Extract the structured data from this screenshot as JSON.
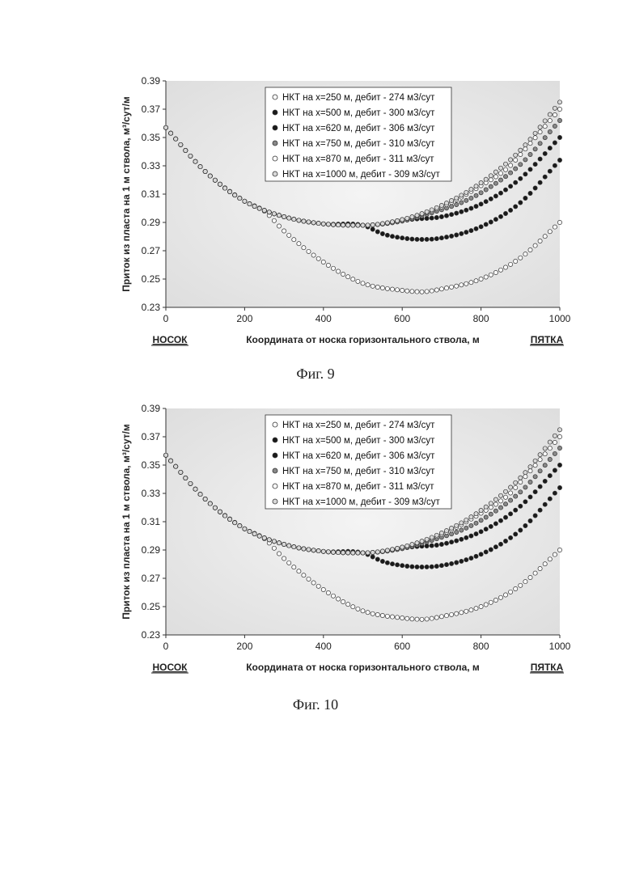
{
  "chart_data": [
    {
      "type": "scatter",
      "caption": "Фиг. 9",
      "xlabel": "Координата от носка горизонтального ствола, м",
      "ylabel": "Приток из пласта на 1 м ствола, м³/сут/м",
      "left_end_label": "НОСОК",
      "right_end_label": "ПЯТКА",
      "xlim": [
        0,
        1000
      ],
      "ylim": [
        0.23,
        0.39
      ],
      "x_ticks": [
        0,
        200,
        400,
        600,
        800,
        1000
      ],
      "y_ticks": [
        0.23,
        0.25,
        0.27,
        0.29,
        0.31,
        0.33,
        0.35,
        0.37,
        0.39
      ],
      "grid": false,
      "legend_position": "top-center",
      "series": [
        {
          "name": "НКТ на x=250 м, дебит - 274 м3/сут",
          "marker_fill": "#ffffff",
          "x": [
            0,
            100,
            200,
            250,
            300,
            400,
            500,
            600,
            650,
            700,
            800,
            900,
            1000
          ],
          "y": [
            0.357,
            0.326,
            0.305,
            0.298,
            0.284,
            0.262,
            0.247,
            0.242,
            0.241,
            0.243,
            0.25,
            0.265,
            0.29
          ]
        },
        {
          "name": "НКТ на x=500 м, дебит - 300 м3/сут",
          "marker_fill": "#1a1a1a",
          "x": [
            0,
            100,
            200,
            300,
            400,
            500,
            550,
            600,
            650,
            700,
            800,
            900,
            1000
          ],
          "y": [
            0.357,
            0.326,
            0.305,
            0.294,
            0.289,
            0.288,
            0.282,
            0.279,
            0.278,
            0.279,
            0.287,
            0.304,
            0.334
          ]
        },
        {
          "name": "НКТ на x=620 м, дебит - 306 м3/сут",
          "marker_fill": "#1a1a1a",
          "x": [
            0,
            100,
            200,
            300,
            400,
            500,
            600,
            620,
            700,
            800,
            900,
            1000
          ],
          "y": [
            0.357,
            0.326,
            0.305,
            0.294,
            0.289,
            0.288,
            0.291,
            0.292,
            0.294,
            0.303,
            0.321,
            0.35
          ]
        },
        {
          "name": "НКТ на x=750 м, дебит - 310 м3/сут",
          "marker_fill": "#888888",
          "x": [
            0,
            100,
            200,
            300,
            400,
            500,
            600,
            700,
            750,
            800,
            900,
            1000
          ],
          "y": [
            0.357,
            0.326,
            0.305,
            0.294,
            0.289,
            0.288,
            0.291,
            0.299,
            0.304,
            0.311,
            0.331,
            0.362
          ]
        },
        {
          "name": "НКТ на x=870 м, дебит - 311 м3/сут",
          "marker_fill": "#ffffff",
          "x": [
            0,
            100,
            200,
            300,
            400,
            500,
            600,
            700,
            800,
            870,
            900,
            1000
          ],
          "y": [
            0.357,
            0.326,
            0.305,
            0.294,
            0.289,
            0.288,
            0.292,
            0.301,
            0.316,
            0.329,
            0.338,
            0.37
          ]
        },
        {
          "name": "НКТ на x=1000 м, дебит - 309 м3/сут",
          "marker_fill": "#d8d8d8",
          "x": [
            0,
            100,
            200,
            300,
            400,
            500,
            600,
            700,
            800,
            900,
            1000
          ],
          "y": [
            0.357,
            0.326,
            0.305,
            0.294,
            0.289,
            0.288,
            0.292,
            0.302,
            0.318,
            0.341,
            0.375
          ]
        }
      ]
    },
    {
      "type": "scatter",
      "caption": "Фиг. 10",
      "xlabel": "Координата от носка горизонтального ствола, м",
      "ylabel": "Приток из пласта на 1 м ствола, м³/сут/м",
      "left_end_label": "НОСОК",
      "right_end_label": "ПЯТКА",
      "xlim": [
        0,
        1000
      ],
      "ylim": [
        0.23,
        0.39
      ],
      "x_ticks": [
        0,
        200,
        400,
        600,
        800,
        1000
      ],
      "y_ticks": [
        0.23,
        0.25,
        0.27,
        0.29,
        0.31,
        0.33,
        0.35,
        0.37,
        0.39
      ],
      "grid": false,
      "legend_position": "top-center",
      "series": [
        {
          "name": "НКТ на x=250 м, дебит - 274 м3/сут",
          "marker_fill": "#ffffff",
          "x": [
            0,
            100,
            200,
            250,
            300,
            400,
            500,
            600,
            650,
            700,
            800,
            900,
            1000
          ],
          "y": [
            0.357,
            0.326,
            0.305,
            0.298,
            0.284,
            0.262,
            0.247,
            0.242,
            0.241,
            0.243,
            0.25,
            0.265,
            0.29
          ]
        },
        {
          "name": "НКТ на x=500 м, дебит - 300 м3/сут",
          "marker_fill": "#1a1a1a",
          "x": [
            0,
            100,
            200,
            300,
            400,
            500,
            550,
            600,
            650,
            700,
            800,
            900,
            1000
          ],
          "y": [
            0.357,
            0.326,
            0.305,
            0.294,
            0.289,
            0.288,
            0.282,
            0.279,
            0.278,
            0.279,
            0.287,
            0.304,
            0.334
          ]
        },
        {
          "name": "НКТ на x=620 м, дебит - 306 м3/сут",
          "marker_fill": "#1a1a1a",
          "x": [
            0,
            100,
            200,
            300,
            400,
            500,
            600,
            620,
            700,
            800,
            900,
            1000
          ],
          "y": [
            0.357,
            0.326,
            0.305,
            0.294,
            0.289,
            0.288,
            0.291,
            0.292,
            0.294,
            0.303,
            0.321,
            0.35
          ]
        },
        {
          "name": "НКТ на x=750 м, дебит - 310 м3/сут",
          "marker_fill": "#888888",
          "x": [
            0,
            100,
            200,
            300,
            400,
            500,
            600,
            700,
            750,
            800,
            900,
            1000
          ],
          "y": [
            0.357,
            0.326,
            0.305,
            0.294,
            0.289,
            0.288,
            0.291,
            0.299,
            0.304,
            0.311,
            0.331,
            0.362
          ]
        },
        {
          "name": "НКТ на x=870 м, дебит - 311 м3/сут",
          "marker_fill": "#ffffff",
          "x": [
            0,
            100,
            200,
            300,
            400,
            500,
            600,
            700,
            800,
            870,
            900,
            1000
          ],
          "y": [
            0.357,
            0.326,
            0.305,
            0.294,
            0.289,
            0.288,
            0.292,
            0.301,
            0.316,
            0.329,
            0.338,
            0.37
          ]
        },
        {
          "name": "НКТ на x=1000 м, дебит - 309 м3/сут",
          "marker_fill": "#d8d8d8",
          "x": [
            0,
            100,
            200,
            300,
            400,
            500,
            600,
            700,
            800,
            900,
            1000
          ],
          "y": [
            0.357,
            0.326,
            0.305,
            0.294,
            0.289,
            0.288,
            0.292,
            0.302,
            0.318,
            0.341,
            0.375
          ]
        }
      ]
    }
  ]
}
